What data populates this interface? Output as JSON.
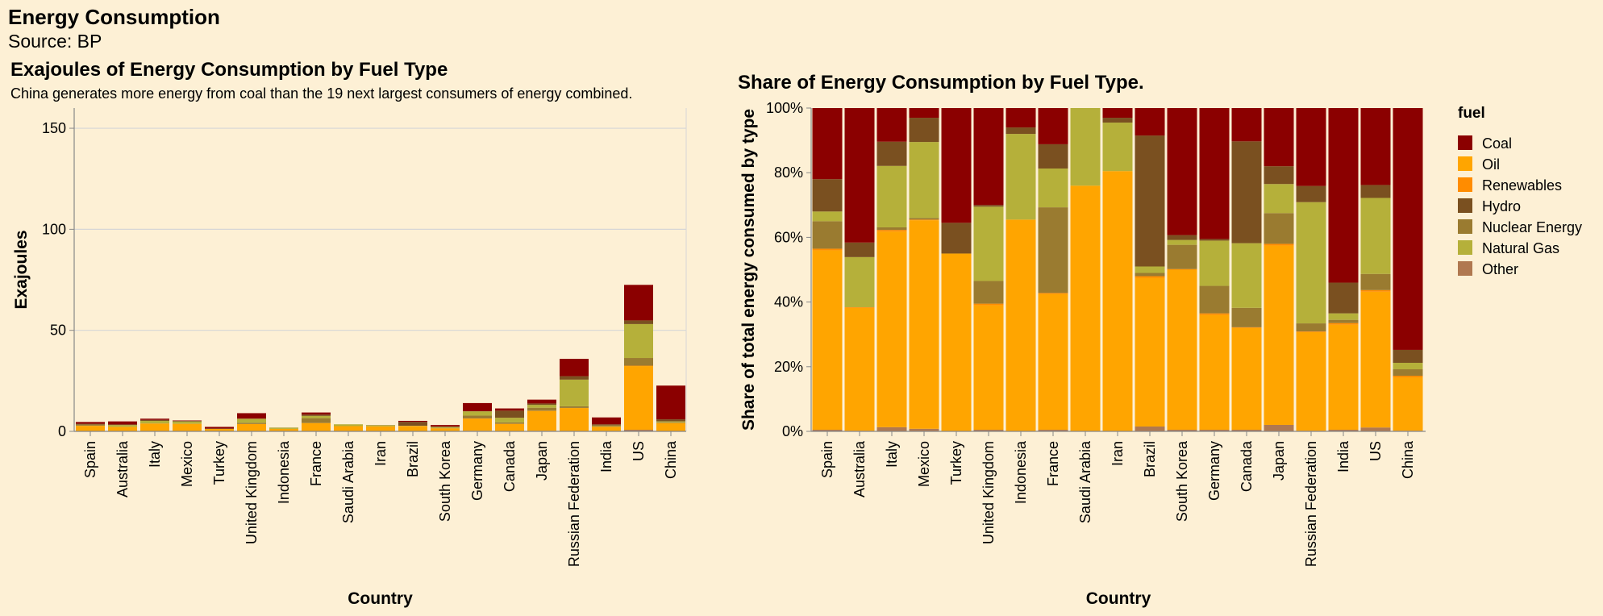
{
  "title": "Energy Consumption",
  "subtitle": "Source: BP",
  "chart_data": [
    {
      "type": "bar",
      "stacked": true,
      "title": "Exajoules of Energy Consumption by Fuel Type",
      "subtitle": "China generates more energy from coal than the 19 next largest consumers of energy combined.",
      "xlabel": "Country",
      "ylabel": "Exajoules",
      "ylim": [
        0,
        160
      ],
      "yticks": [
        0,
        50,
        100,
        150
      ],
      "ytick_labels": [
        "0",
        "50",
        "100",
        "150"
      ],
      "grid": true,
      "categories": [
        "Spain",
        "Australia",
        "Italy",
        "Mexico",
        "Turkey",
        "United Kingdom",
        "Indonesia",
        "France",
        "Saudi Arabia",
        "Iran",
        "Brazil",
        "South Korea",
        "Germany",
        "Canada",
        "Japan",
        "Russian Federation",
        "India",
        "US",
        "China"
      ],
      "series": [
        {
          "name": "Other",
          "color": "#b07850",
          "values": [
            0.02,
            0.01,
            0.08,
            0.04,
            0.01,
            0.1,
            0.01,
            0.1,
            0.0,
            0.0,
            0.1,
            0.02,
            0.3,
            0.1,
            0.3,
            0.05,
            0.05,
            0.8,
            0.1
          ]
        },
        {
          "name": "Oil",
          "color": "#ffa500",
          "values": [
            2.7,
            2.2,
            3.8,
            3.7,
            1.2,
            3.5,
            1.2,
            4.0,
            2.6,
            2.5,
            2.5,
            1.5,
            6.0,
            3.6,
            9.8,
            11.5,
            2.2,
            31.5,
            4.0
          ]
        },
        {
          "name": "Renewables",
          "color": "#ff8c00",
          "values": [
            0.05,
            0.02,
            0.05,
            0.02,
            0.01,
            0.05,
            0.01,
            0.04,
            0.0,
            0.0,
            0.05,
            0.02,
            0.1,
            0.05,
            0.1,
            0.05,
            0.05,
            0.2,
            0.05
          ]
        },
        {
          "name": "Nuclear Energy",
          "color": "#9a7b30",
          "values": [
            0.4,
            0.0,
            0.05,
            0.05,
            0.0,
            0.6,
            0.0,
            2.4,
            0.0,
            0.0,
            0.05,
            0.2,
            1.4,
            0.7,
            1.5,
            0.8,
            0.3,
            3.8,
            0.3
          ]
        },
        {
          "name": "Natural Gas",
          "color": "#b5b03a",
          "values": [
            0.12,
            0.9,
            1.2,
            1.1,
            0.0,
            2.0,
            0.6,
            1.1,
            0.9,
            0.5,
            0.1,
            0.5,
            2.1,
            2.3,
            1.4,
            13.2,
            0.3,
            16.8,
            0.5
          ]
        },
        {
          "name": "Hydro",
          "color": "#7a5020",
          "values": [
            0.45,
            0.3,
            0.5,
            0.3,
            0.2,
            0.05,
            0.05,
            0.7,
            0.0,
            0.1,
            1.9,
            0.1,
            0.1,
            3.5,
            0.7,
            1.7,
            0.6,
            1.8,
            1.0
          ]
        },
        {
          "name": "Coal",
          "color": "#8b0000",
          "values": [
            0.9,
            1.5,
            0.6,
            0.2,
            0.8,
            2.7,
            0.0,
            1.0,
            0.0,
            0.0,
            0.5,
            0.8,
            4.0,
            1.1,
            1.9,
            8.6,
            3.4,
            17.6,
            16.7
          ]
        }
      ]
    },
    {
      "type": "bar",
      "stacked": true,
      "normalized": true,
      "title": "Share of Energy Consumption by Fuel Type.",
      "xlabel": "Country",
      "ylabel": "Share of total energy consumed by type",
      "ylim": [
        0,
        1
      ],
      "yticks": [
        0,
        0.2,
        0.4,
        0.6,
        0.8,
        1.0
      ],
      "ytick_labels": [
        "0%",
        "20%",
        "40%",
        "60%",
        "80%",
        "100%"
      ],
      "grid": false,
      "legend_position": "right",
      "legend_title": "fuel",
      "legend_entries": [
        {
          "label": "Coal",
          "color": "#8b0000"
        },
        {
          "label": "Oil",
          "color": "#ffa500"
        },
        {
          "label": "Renewables",
          "color": "#ff8c00"
        },
        {
          "label": "Hydro",
          "color": "#7a5020"
        },
        {
          "label": "Nuclear Energy",
          "color": "#9a7b30"
        },
        {
          "label": "Natural Gas",
          "color": "#b5b03a"
        },
        {
          "label": "Other",
          "color": "#b07850"
        }
      ],
      "categories": [
        "Spain",
        "Australia",
        "Italy",
        "Mexico",
        "Turkey",
        "United Kingdom",
        "Indonesia",
        "France",
        "Saudi Arabia",
        "Iran",
        "Brazil",
        "South Korea",
        "Germany",
        "Canada",
        "Japan",
        "Russian Federation",
        "India",
        "US",
        "China"
      ],
      "series": [
        {
          "name": "Other",
          "color": "#b07850",
          "values": [
            0.005,
            0.002,
            0.013,
            0.008,
            0.0,
            0.005,
            0.0,
            0.005,
            0.0,
            0.0,
            0.015,
            0.005,
            0.005,
            0.005,
            0.02,
            0.002,
            0.005,
            0.012,
            0.002
          ]
        },
        {
          "name": "Oil",
          "color": "#ffa500",
          "values": [
            0.555,
            0.38,
            0.605,
            0.645,
            0.55,
            0.385,
            0.655,
            0.42,
            0.76,
            0.805,
            0.46,
            0.495,
            0.355,
            0.315,
            0.555,
            0.305,
            0.325,
            0.42,
            0.165
          ]
        },
        {
          "name": "Renewables",
          "color": "#ff8c00",
          "values": [
            0.005,
            0.002,
            0.005,
            0.002,
            0.0,
            0.005,
            0.0,
            0.003,
            0.0,
            0.0,
            0.005,
            0.002,
            0.005,
            0.002,
            0.005,
            0.002,
            0.005,
            0.005,
            0.005
          ]
        },
        {
          "name": "Nuclear Energy",
          "color": "#9a7b30",
          "values": [
            0.085,
            0.0,
            0.008,
            0.005,
            0.0,
            0.07,
            0.0,
            0.265,
            0.0,
            0.0,
            0.01,
            0.075,
            0.085,
            0.06,
            0.095,
            0.025,
            0.01,
            0.05,
            0.02
          ]
        },
        {
          "name": "Natural Gas",
          "color": "#b5b03a",
          "values": [
            0.03,
            0.155,
            0.19,
            0.235,
            0.0,
            0.23,
            0.265,
            0.12,
            0.24,
            0.15,
            0.02,
            0.015,
            0.14,
            0.2,
            0.09,
            0.375,
            0.02,
            0.235,
            0.02
          ]
        },
        {
          "name": "Hydro",
          "color": "#7a5020",
          "values": [
            0.1,
            0.045,
            0.075,
            0.075,
            0.095,
            0.005,
            0.02,
            0.075,
            0.0,
            0.015,
            0.405,
            0.015,
            0.005,
            0.315,
            0.055,
            0.05,
            0.095,
            0.04,
            0.04
          ]
        },
        {
          "name": "Coal",
          "color": "#8b0000",
          "values": [
            0.22,
            0.416,
            0.104,
            0.03,
            0.355,
            0.3,
            0.06,
            0.112,
            0.0,
            0.03,
            0.085,
            0.393,
            0.405,
            0.103,
            0.18,
            0.241,
            0.54,
            0.238,
            0.748
          ]
        }
      ]
    }
  ]
}
